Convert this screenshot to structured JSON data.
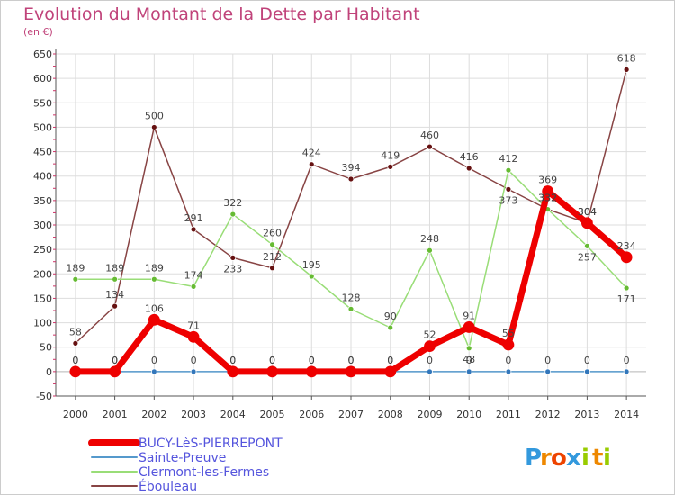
{
  "chart_data": {
    "type": "line",
    "title": "Evolution du Montant de la Dette par Habitant",
    "unit_label": "(en €)",
    "x": [
      "2000",
      "2001",
      "2002",
      "2003",
      "2004",
      "2005",
      "2006",
      "2007",
      "2008",
      "2009",
      "2010",
      "2011",
      "2012",
      "2013",
      "2014"
    ],
    "ylim": [
      -50,
      650
    ],
    "yticks": [
      -50,
      0,
      50,
      100,
      150,
      200,
      250,
      300,
      350,
      400,
      450,
      500,
      550,
      600,
      650
    ],
    "grid": true,
    "legend_position": "bottom-left",
    "series": [
      {
        "name": "BUCY-LèS-PIERREPONT",
        "color": "#ee0000",
        "marker": "#ee0000",
        "width": 7,
        "radius": 6,
        "values": [
          0,
          0,
          106,
          71,
          0,
          0,
          0,
          0,
          0,
          52,
          91,
          55,
          369,
          304,
          234
        ]
      },
      {
        "name": "Sainte-Preuve",
        "color": "#5599cc",
        "marker": "#3377bb",
        "width": 1.5,
        "radius": 3,
        "values": [
          0,
          0,
          0,
          0,
          0,
          0,
          0,
          0,
          0,
          0,
          0,
          0,
          0,
          0,
          0
        ]
      },
      {
        "name": "Clermont-les-Fermes",
        "color": "#99dd77",
        "marker": "#66bb33",
        "width": 1.5,
        "radius": 3,
        "values": [
          189,
          189,
          189,
          174,
          322,
          260,
          195,
          128,
          90,
          248,
          48,
          412,
          332,
          257,
          171
        ]
      },
      {
        "name": "Ébouleau",
        "color": "#884444",
        "marker": "#661111",
        "width": 1.5,
        "radius": 3,
        "values": [
          58,
          134,
          500,
          291,
          233,
          212,
          424,
          394,
          419,
          460,
          416,
          373,
          332,
          304,
          618
        ]
      }
    ]
  },
  "logo": {
    "text": "Proxiti",
    "letters": [
      "P",
      "r",
      "o",
      "x",
      "i",
      "t",
      "i"
    ],
    "colors": [
      "#3399dd",
      "#ee8800",
      "#ee4400",
      "#3399dd",
      "#99cc00",
      "#ee8800",
      "#99cc00"
    ]
  }
}
